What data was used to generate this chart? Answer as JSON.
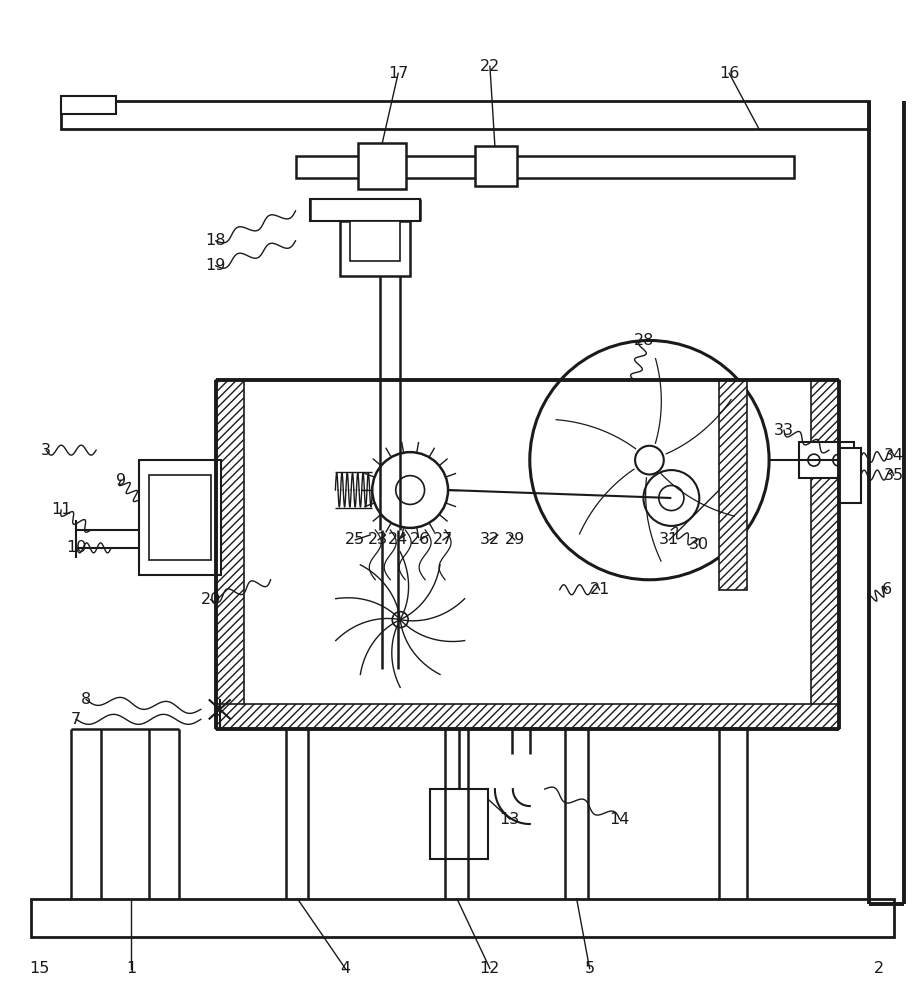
{
  "bg_color": "#ffffff",
  "line_color": "#1a1a1a",
  "fig_width": 9.23,
  "fig_height": 10.0,
  "dpi": 100
}
